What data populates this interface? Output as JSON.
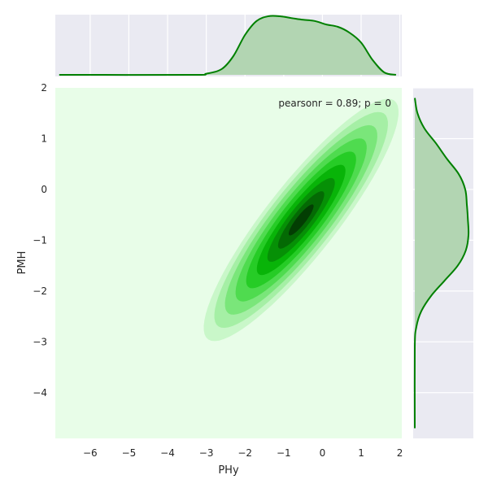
{
  "chart_data": {
    "type": "kde-jointplot",
    "xlabel": "PHy",
    "ylabel": "PMH",
    "xlim": [
      -6.9,
      2.05
    ],
    "ylim": [
      -4.9,
      2.0
    ],
    "x_ticks": [
      -6,
      -5,
      -4,
      -3,
      -2,
      -1,
      0,
      1,
      2
    ],
    "y_ticks": [
      -4,
      -3,
      -2,
      -1,
      0,
      1,
      2
    ],
    "x_tick_labels": [
      "−6",
      "−5",
      "−4",
      "−3",
      "−2",
      "−1",
      "0",
      "1",
      "2"
    ],
    "y_tick_labels": [
      "−4",
      "−3",
      "−2",
      "−1",
      "0",
      "1",
      "2"
    ],
    "annotation": "pearsonr = 0.89; p = 0",
    "joint_kde": {
      "mean": [
        -0.55,
        -0.6
      ],
      "std": [
        0.95,
        0.9
      ],
      "corr": 0.89,
      "levels": 9,
      "colormap": [
        "#e8fde8",
        "#c9f7c9",
        "#a5efa5",
        "#7ae67a",
        "#4fdb4f",
        "#26cc26",
        "#08b408",
        "#069006",
        "#046a04",
        "#033e03"
      ]
    },
    "marginal_x": {
      "x": [
        -6.8,
        -3.4,
        -3.0,
        -2.6,
        -2.3,
        -2.0,
        -1.7,
        -1.4,
        -1.1,
        -0.8,
        -0.5,
        -0.2,
        0.1,
        0.4,
        0.7,
        1.0,
        1.3,
        1.6,
        1.9
      ],
      "density": [
        0.0,
        0.0,
        0.02,
        0.1,
        0.32,
        0.68,
        0.92,
        1.0,
        1.0,
        0.97,
        0.94,
        0.92,
        0.86,
        0.82,
        0.72,
        0.55,
        0.25,
        0.04,
        0.0
      ]
    },
    "marginal_y": {
      "y": [
        -4.7,
        -3.1,
        -2.7,
        -2.4,
        -2.1,
        -1.8,
        -1.5,
        -1.2,
        -0.9,
        -0.6,
        -0.3,
        0.0,
        0.3,
        0.6,
        0.9,
        1.2,
        1.5,
        1.8
      ],
      "density": [
        0.0,
        0.0,
        0.03,
        0.12,
        0.3,
        0.55,
        0.8,
        0.95,
        1.0,
        0.99,
        0.97,
        0.94,
        0.82,
        0.6,
        0.4,
        0.18,
        0.05,
        0.0
      ]
    },
    "colors": {
      "joint_bg": "#e8fde8",
      "marginal_bg": "#eaeaf2",
      "grid": "#ffffff",
      "marginal_line": "#008000",
      "marginal_fill": "#b2d5b2"
    }
  }
}
